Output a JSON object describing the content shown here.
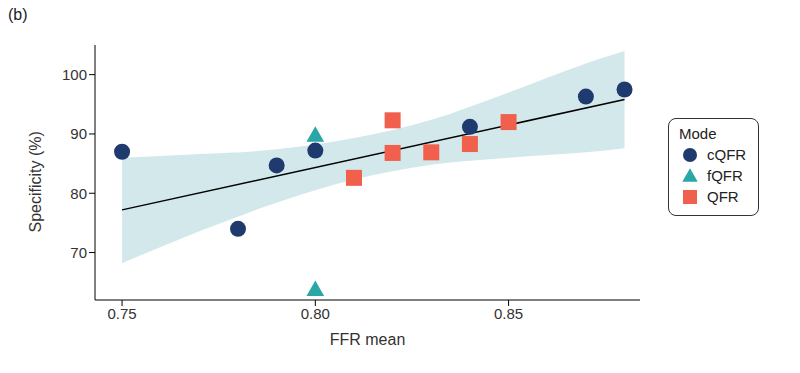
{
  "chart_data": {
    "type": "scatter",
    "title": "(b)",
    "x_label": "FFR mean",
    "y_label": "Specificity (%)",
    "legend_title": "Mode",
    "xlim": [
      0.743,
      0.884
    ],
    "xticks": [
      0.75,
      {
        "value": 0.8,
        "label": "0.80"
      },
      0.85
    ],
    "ylim": [
      62,
      105
    ],
    "yticks": [
      70,
      80,
      90,
      100
    ],
    "grid": false,
    "legend": "right",
    "series": [
      {
        "name": "cQFR",
        "color": "#1f3a6e",
        "marker": "circle",
        "x": [
          0.75,
          0.78,
          0.79,
          0.8,
          0.84,
          0.87,
          0.88
        ],
        "values": [
          87,
          74,
          84.7,
          87.2,
          91.2,
          96.3,
          97.5
        ]
      },
      {
        "name": "fQFR",
        "color": "#2aa6a6",
        "marker": "triangle",
        "x": [
          0.8,
          0.8
        ],
        "values": [
          89.8,
          63.8
        ]
      },
      {
        "name": "QFR",
        "color": "#f0604d",
        "marker": "square",
        "x": [
          0.81,
          0.82,
          0.82,
          0.83,
          0.84,
          0.85
        ],
        "values": [
          82.6,
          92.3,
          86.8,
          86.9,
          88.3,
          92
        ]
      }
    ],
    "fit": {
      "color": "#000000",
      "x": [
        0.75,
        0.88
      ],
      "values": [
        77.2,
        95.8
      ]
    },
    "band": {
      "color": "#cbe4e7",
      "x": [
        0.75,
        0.77,
        0.79,
        0.81,
        0.83,
        0.85,
        0.87,
        0.88
      ],
      "lower": [
        68.2,
        73.6,
        78.4,
        82.3,
        84.8,
        86.0,
        86.9,
        87.6
      ],
      "upper": [
        86.0,
        86.6,
        87.4,
        89.3,
        92.4,
        97.0,
        101.9,
        104.0
      ]
    }
  }
}
